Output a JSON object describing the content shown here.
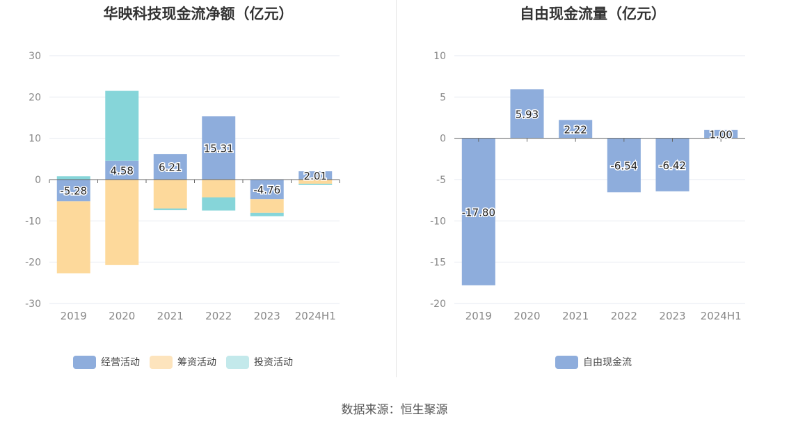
{
  "source": "数据来源：恒生聚源",
  "colors": {
    "operating": "#8eaddc",
    "financing": "#fdd99b",
    "investing": "#86d5d9",
    "free_cash_flow": "#8eaddc",
    "grid": "#e6e9f0",
    "axis_text": "#888888"
  },
  "chart_data": [
    {
      "type": "bar",
      "stacked": true,
      "title": "华映科技现金流净额（亿元）",
      "categories": [
        "2019",
        "2020",
        "2021",
        "2022",
        "2023",
        "2024H1"
      ],
      "ylim": [
        -30,
        30
      ],
      "yticks": [
        "30",
        "20",
        "10",
        "0",
        "-10",
        "-20",
        "-30"
      ],
      "series": [
        {
          "name": "经营活动",
          "values": [
            -5.28,
            4.58,
            6.21,
            15.31,
            -4.76,
            2.01
          ],
          "labels": [
            "-5.28",
            "4.58",
            "6.21",
            "15.31",
            "-4.76",
            "2.01"
          ]
        },
        {
          "name": "筹资活动",
          "values": [
            -17.4,
            -20.7,
            -7.0,
            -4.3,
            -3.3,
            -1.0
          ]
        },
        {
          "name": "投资活动",
          "values": [
            0.8,
            16.9,
            -0.4,
            -3.2,
            -0.8,
            -0.3
          ]
        }
      ],
      "legend": "bottom"
    },
    {
      "type": "bar",
      "title": "自由现金流量（亿元）",
      "categories": [
        "2019",
        "2020",
        "2021",
        "2022",
        "2023",
        "2024H1"
      ],
      "ylim": [
        -20,
        10
      ],
      "yticks": [
        "10",
        "5",
        "0",
        "-5",
        "-10",
        "-15",
        "-20"
      ],
      "series": [
        {
          "name": "自由现金流",
          "values": [
            -17.8,
            5.93,
            2.22,
            -6.54,
            -6.42,
            1.0
          ],
          "labels": [
            "-17.80",
            "5.93",
            "2.22",
            "-6.54",
            "-6.42",
            "1.00"
          ]
        }
      ],
      "legend": "bottom"
    }
  ]
}
